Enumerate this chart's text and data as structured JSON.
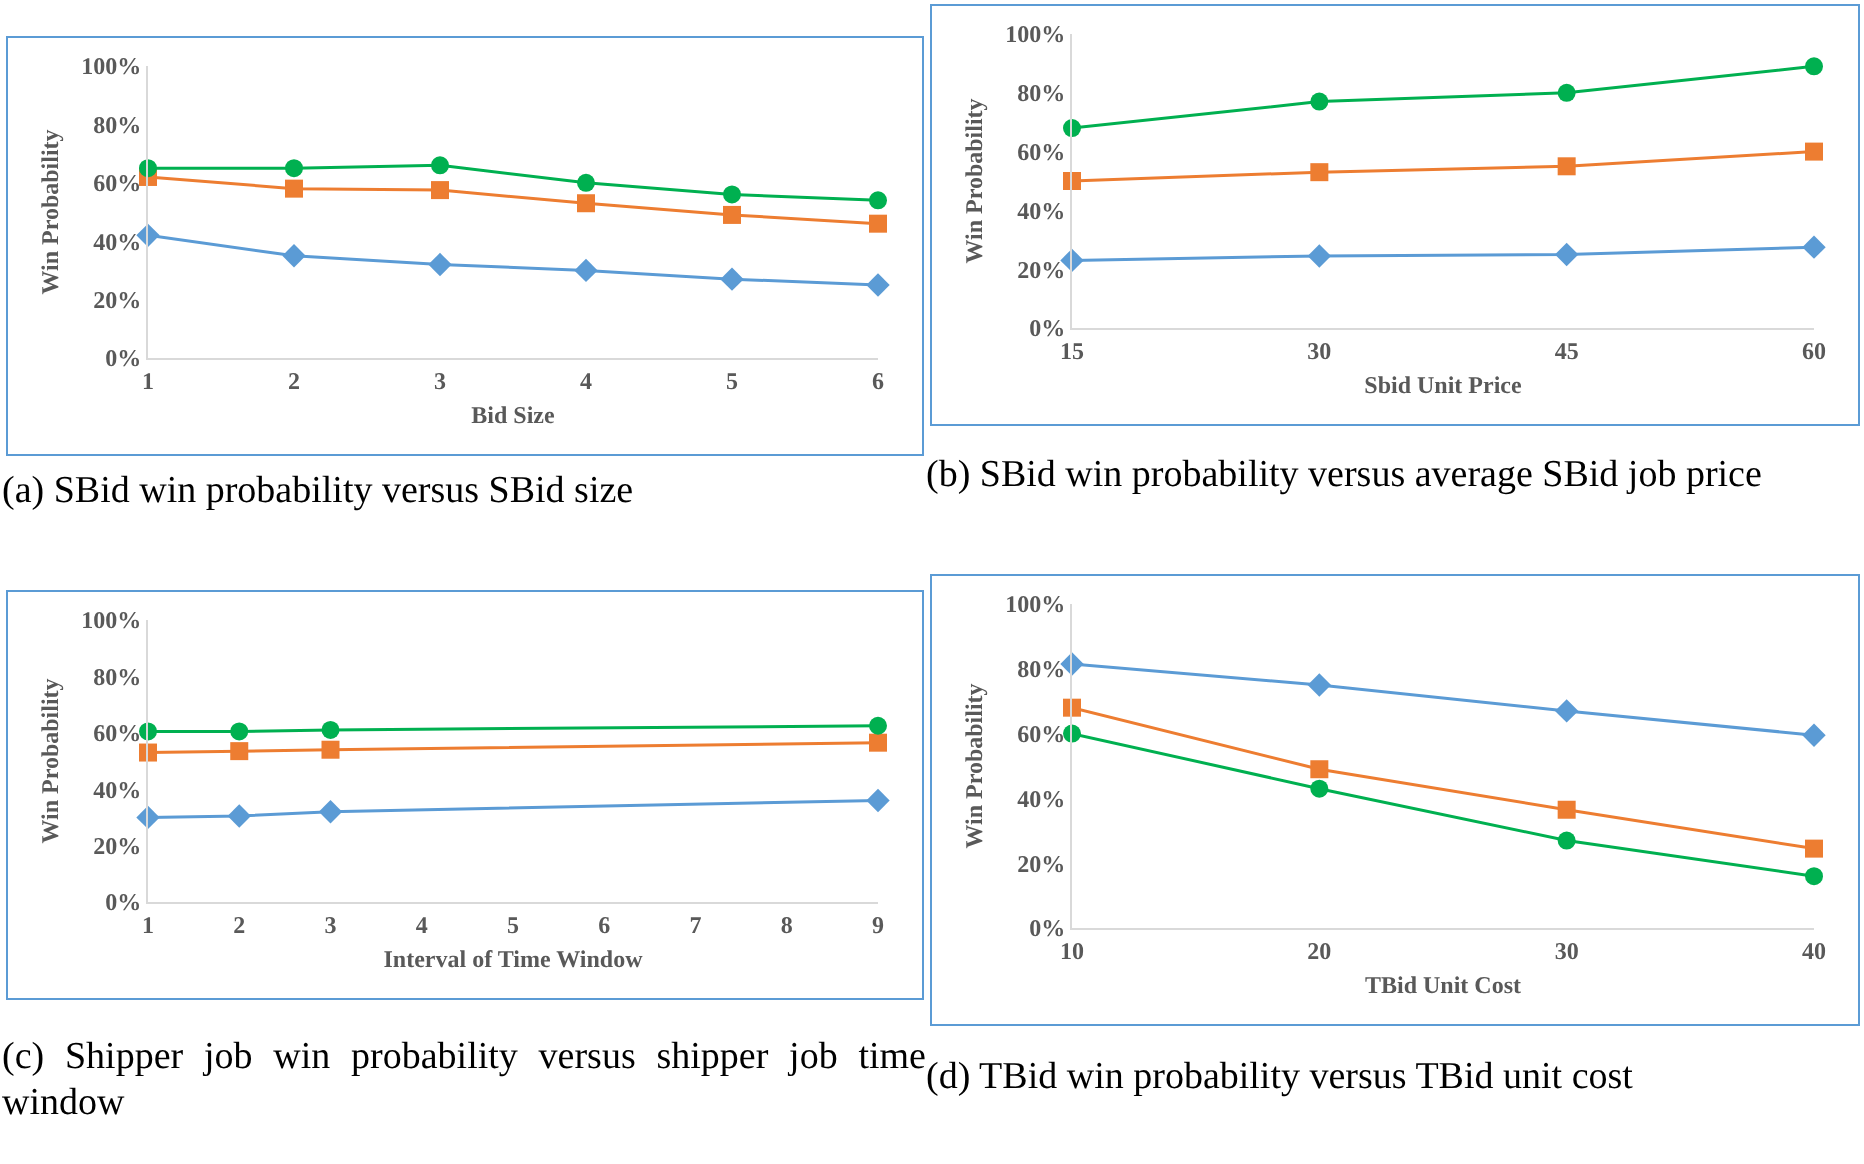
{
  "chart_data": [
    {
      "type": "line",
      "xlabel": "Bid Size",
      "ylabel": "Win Probability",
      "x": [
        1,
        2,
        3,
        4,
        5,
        6
      ],
      "xlim": [
        1,
        6
      ],
      "xticks": [
        1,
        2,
        3,
        4,
        5,
        6
      ],
      "ylim": [
        0,
        100
      ],
      "yticks": [
        {
          "value": 0,
          "label": "0%"
        },
        {
          "value": 20,
          "label": "20%"
        },
        {
          "value": 40,
          "label": "40%"
        },
        {
          "value": 60,
          "label": "60%"
        },
        {
          "value": 80,
          "label": "80%"
        },
        {
          "value": 100,
          "label": "100%"
        }
      ],
      "grid": false,
      "annotations": [
        "(a) SBid win probability versus SBid size"
      ],
      "series": [
        {
          "color": "#5b9bd5",
          "marker": "diamond",
          "values": [
            42,
            35,
            32,
            30,
            27,
            25
          ]
        },
        {
          "color": "#ed7d31",
          "marker": "square",
          "values": [
            62,
            58,
            57.5,
            53,
            49,
            46
          ]
        },
        {
          "color": "#00b050",
          "marker": "circle",
          "values": [
            65,
            65,
            66,
            60,
            56,
            54
          ]
        }
      ]
    },
    {
      "type": "line",
      "xlabel": "Sbid Unit Price",
      "ylabel": "Win Probability",
      "x": [
        15,
        30,
        45,
        60
      ],
      "xlim": [
        15,
        60
      ],
      "xticks": [
        15,
        30,
        45,
        60
      ],
      "ylim": [
        0,
        100
      ],
      "yticks": [
        {
          "value": 0,
          "label": "0%"
        },
        {
          "value": 20,
          "label": "20%"
        },
        {
          "value": 40,
          "label": "40%"
        },
        {
          "value": 60,
          "label": "60%"
        },
        {
          "value": 80,
          "label": "80%"
        },
        {
          "value": 100,
          "label": "100%"
        }
      ],
      "grid": false,
      "annotations": [
        "(b) SBid win probability versus average SBid job price"
      ],
      "series": [
        {
          "color": "#5b9bd5",
          "marker": "diamond",
          "values": [
            23,
            24.5,
            25,
            27.5
          ]
        },
        {
          "color": "#ed7d31",
          "marker": "square",
          "values": [
            50,
            53,
            55,
            60
          ]
        },
        {
          "color": "#00b050",
          "marker": "circle",
          "values": [
            68,
            77,
            80,
            89
          ]
        }
      ]
    },
    {
      "type": "line",
      "xlabel": "Interval of Time Window",
      "ylabel": "Win Probability",
      "x": [
        1,
        2,
        3,
        9
      ],
      "xlim": [
        1,
        9
      ],
      "xticks": [
        1,
        2,
        3,
        4,
        5,
        6,
        7,
        8,
        9
      ],
      "ylim": [
        0,
        100
      ],
      "yticks": [
        {
          "value": 0,
          "label": "0%"
        },
        {
          "value": 20,
          "label": "20%"
        },
        {
          "value": 40,
          "label": "40%"
        },
        {
          "value": 60,
          "label": "60%"
        },
        {
          "value": 80,
          "label": "80%"
        },
        {
          "value": 100,
          "label": "100%"
        }
      ],
      "grid": false,
      "annotations": [
        "(c) Shipper job win probability versus shipper job time window"
      ],
      "series": [
        {
          "color": "#5b9bd5",
          "marker": "diamond",
          "values": [
            30,
            30.5,
            32,
            36
          ]
        },
        {
          "color": "#ed7d31",
          "marker": "square",
          "values": [
            53,
            53.5,
            54,
            56.5
          ]
        },
        {
          "color": "#00b050",
          "marker": "circle",
          "values": [
            60.5,
            60.5,
            61,
            62.5
          ]
        }
      ]
    },
    {
      "type": "line",
      "xlabel": "TBid Unit Cost",
      "ylabel": "Win Probability",
      "x": [
        10,
        20,
        30,
        40
      ],
      "xlim": [
        10,
        40
      ],
      "xticks": [
        10,
        20,
        30,
        40
      ],
      "ylim": [
        0,
        100
      ],
      "yticks": [
        {
          "value": 0,
          "label": "0%"
        },
        {
          "value": 20,
          "label": "20%"
        },
        {
          "value": 40,
          "label": "40%"
        },
        {
          "value": 60,
          "label": "60%"
        },
        {
          "value": 80,
          "label": "80%"
        },
        {
          "value": 100,
          "label": "100%"
        }
      ],
      "grid": false,
      "annotations": [
        "(d) TBid win probability versus TBid unit cost"
      ],
      "series": [
        {
          "color": "#5b9bd5",
          "marker": "diamond",
          "values": [
            81.5,
            75,
            67,
            59.5
          ]
        },
        {
          "color": "#ed7d31",
          "marker": "square",
          "values": [
            68,
            49,
            36.5,
            24.5
          ]
        },
        {
          "color": "#00b050",
          "marker": "circle",
          "values": [
            60,
            43,
            27,
            16
          ]
        }
      ]
    }
  ]
}
